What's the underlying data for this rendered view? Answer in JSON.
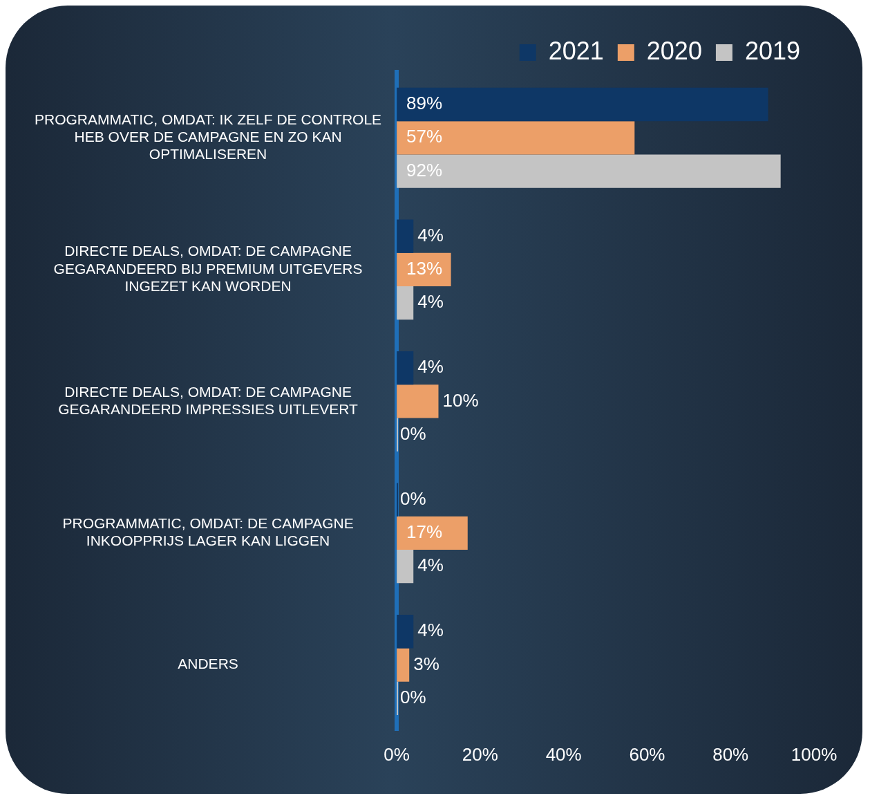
{
  "chart_data": {
    "type": "bar",
    "orientation": "horizontal",
    "categories": [
      "PROGRAMMATIC, OMDAT: IK ZELF DE CONTROLE HEB OVER DE CAMPAGNE EN ZO KAN OPTIMALISEREN",
      "DIRECTE DEALS, OMDAT: DE CAMPAGNE GEGARANDEERD BIJ PREMIUM UITGEVERS INGEZET KAN WORDEN",
      "DIRECTE DEALS, OMDAT: DE CAMPAGNE GEGARANDEERD IMPRESSIES UITLEVERT",
      "PROGRAMMATIC, OMDAT: DE CAMPAGNE INKOOPPRIJS LAGER KAN LIGGEN",
      "ANDERS"
    ],
    "series": [
      {
        "name": "2021",
        "color": "#0e3766",
        "values": [
          89,
          4,
          4,
          0,
          4
        ],
        "value_labels": [
          "89%",
          "4%",
          "4%",
          "0%",
          "4%"
        ]
      },
      {
        "name": "2020",
        "color": "#ec9f68",
        "values": [
          57,
          13,
          10,
          17,
          3
        ],
        "value_labels": [
          "57%",
          "13%",
          "10%",
          "17%",
          "3%"
        ]
      },
      {
        "name": "2019",
        "color": "#c4c4c4",
        "values": [
          92,
          4,
          0,
          4,
          0
        ],
        "value_labels": [
          "92%",
          "4%",
          "0%",
          "4%",
          "0%"
        ]
      }
    ],
    "xlim": [
      0,
      100
    ],
    "xticks": [
      {
        "value": 0,
        "label": "0%"
      },
      {
        "value": 20,
        "label": "20%"
      },
      {
        "value": 40,
        "label": "40%"
      },
      {
        "value": 60,
        "label": "60%"
      },
      {
        "value": 80,
        "label": "80%"
      },
      {
        "value": 100,
        "label": "100%"
      }
    ],
    "grid": false,
    "legend": "top right"
  }
}
